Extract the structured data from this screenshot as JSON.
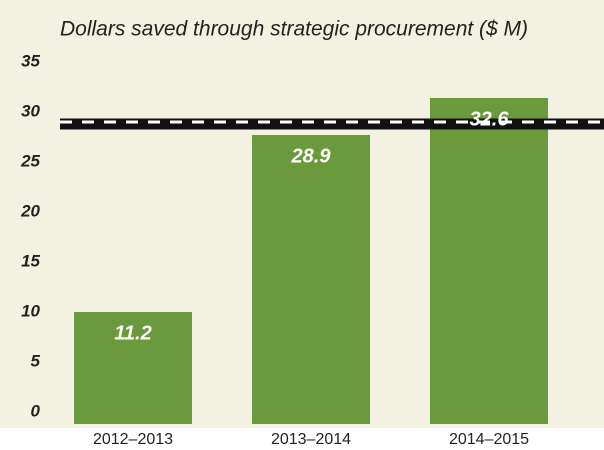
{
  "chart_data": {
    "type": "bar",
    "title": "Dollars saved through strategic procurement ($ M)",
    "categories": [
      "2012–2013",
      "2013–2014",
      "2014–2015"
    ],
    "values": [
      11.2,
      28.9,
      32.6
    ],
    "color": "#6a9a3c",
    "ylim": [
      0,
      35
    ],
    "yticks": [
      0,
      5,
      10,
      15,
      20,
      25,
      30,
      35
    ],
    "grid": false,
    "reference_line": 30
  }
}
